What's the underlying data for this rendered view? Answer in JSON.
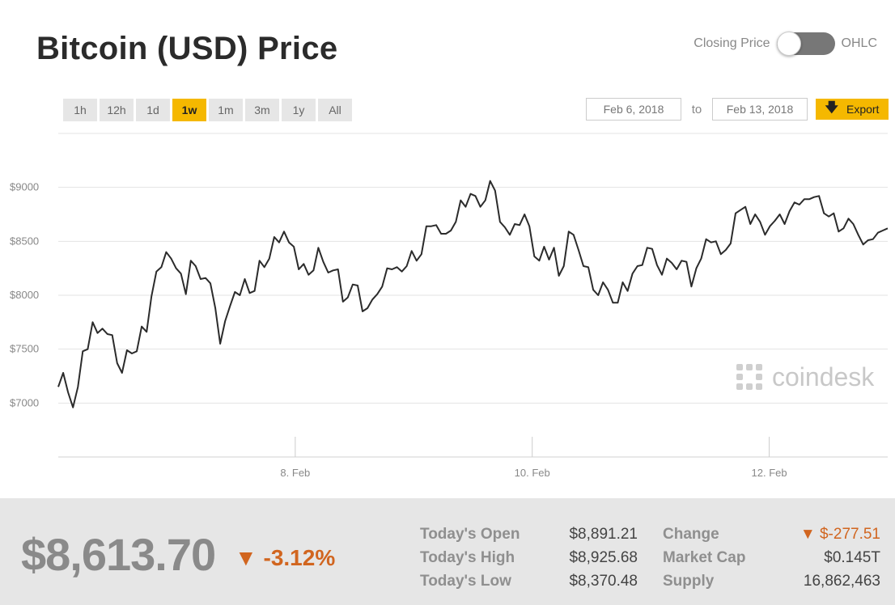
{
  "header": {
    "title": "Bitcoin (USD) Price",
    "toggle_left": "Closing Price",
    "toggle_right": "OHLC"
  },
  "ranges": [
    "1h",
    "12h",
    "1d",
    "1w",
    "1m",
    "3m",
    "1y",
    "All"
  ],
  "active_range": "1w",
  "date_from": "Feb 6, 2018",
  "to_label": "to",
  "date_to": "Feb 13, 2018",
  "export_label": "Export",
  "watermark": "coindesk",
  "summary": {
    "price": "$8,613.70",
    "change_pct": "▼ -3.12%",
    "stats": [
      {
        "label": "Today's Open",
        "value": "$8,891.21"
      },
      {
        "label": "Today's High",
        "value": "$8,925.68"
      },
      {
        "label": "Today's Low",
        "value": "$8,370.48"
      },
      {
        "label": "Change",
        "value": "▼ $-277.51"
      },
      {
        "label": "Market Cap",
        "value": "$0.145T"
      },
      {
        "label": "Supply",
        "value": "16,862,463"
      }
    ]
  },
  "colors": {
    "accent": "#f5b800",
    "down": "#d1651f",
    "line": "#2b2b2b",
    "footer_bg": "#e6e6e6"
  },
  "chart_data": {
    "type": "line",
    "yticks": [
      "$7000",
      "$7500",
      "$8000",
      "$8500",
      "$9000"
    ],
    "ytick_values": [
      7000,
      7500,
      8000,
      8500,
      9000
    ],
    "xticks": [
      "8. Feb",
      "10. Feb",
      "12. Feb"
    ],
    "xtick_values": [
      48,
      96,
      144
    ],
    "ylim": [
      6500,
      9500
    ],
    "xlim": [
      0,
      168
    ],
    "series": [
      {
        "values": [
          7150,
          7280,
          7100,
          6960,
          7150,
          7480,
          7500,
          7750,
          7650,
          7690,
          7640,
          7630,
          7370,
          7280,
          7490,
          7460,
          7480,
          7710,
          7660,
          7990,
          8220,
          8260,
          8400,
          8340,
          8250,
          8200,
          8010,
          8320,
          8270,
          8150,
          8160,
          8110,
          7880,
          7550,
          7760,
          7900,
          8030,
          8000,
          8150,
          8020,
          8040,
          8320,
          8260,
          8340,
          8540,
          8490,
          8590,
          8490,
          8450,
          8240,
          8290,
          8190,
          8230,
          8440,
          8310,
          8210,
          8230,
          8240,
          7940,
          7980,
          8100,
          8090,
          7850,
          7880,
          7960,
          8010,
          8080,
          8250,
          8240,
          8260,
          8220,
          8270,
          8410,
          8320,
          8380,
          8640,
          8640,
          8650,
          8570,
          8570,
          8600,
          8680,
          8880,
          8820,
          8940,
          8920,
          8820,
          8880,
          9060,
          8970,
          8680,
          8630,
          8560,
          8660,
          8650,
          8750,
          8640,
          8360,
          8320,
          8450,
          8330,
          8440,
          8180,
          8270,
          8590,
          8560,
          8420,
          8270,
          8260,
          8050,
          8000,
          8120,
          8050,
          7930,
          7930,
          8120,
          8040,
          8200,
          8270,
          8280,
          8440,
          8430,
          8280,
          8190,
          8340,
          8300,
          8240,
          8320,
          8310,
          8080,
          8250,
          8340,
          8520,
          8490,
          8500,
          8380,
          8420,
          8480,
          8760,
          8790,
          8820,
          8660,
          8750,
          8680,
          8560,
          8640,
          8690,
          8750,
          8660,
          8780,
          8860,
          8840,
          8890,
          8890,
          8910,
          8920,
          8760,
          8730,
          8760,
          8590,
          8620,
          8710,
          8660,
          8560,
          8470,
          8510,
          8520,
          8580,
          8600,
          8620
        ]
      }
    ],
    "grid": true,
    "legend": "none"
  }
}
